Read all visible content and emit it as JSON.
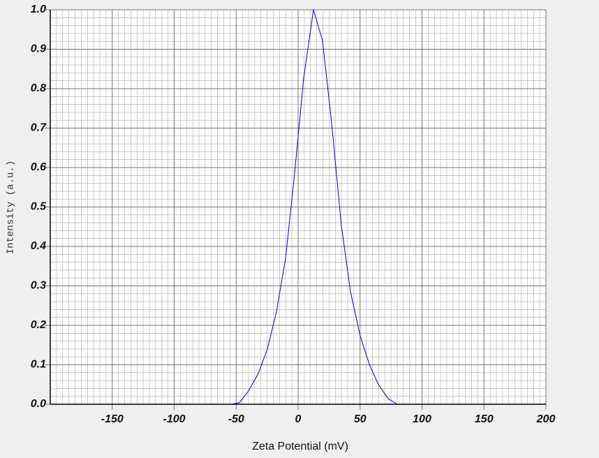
{
  "chart_data": {
    "type": "line",
    "x_label": "Zeta Potential (mV)",
    "y_label": "Intensity (a.u.)",
    "xlim": [
      -200,
      200
    ],
    "ylim": [
      0,
      1
    ],
    "xticks": [
      -150,
      -100,
      -50,
      0,
      50,
      100,
      150,
      200
    ],
    "yticks": [
      {
        "value": 0,
        "label": "0.0"
      },
      0.1,
      0.2,
      0.3,
      0.4,
      0.5,
      0.6,
      0.7,
      0.8,
      0.9,
      {
        "value": 1,
        "label": "1.0"
      }
    ],
    "grid": true,
    "series": [
      {
        "color": "#0000cc",
        "x": [
          -54,
          -47.3,
          -40,
          -32.1,
          -24.8,
          -17.5,
          -10.1,
          -2.8,
          4.5,
          12.4,
          19.7,
          27,
          34.9,
          42.3,
          50.1,
          57.5,
          64.8,
          72.7,
          80
        ],
        "values": [
          0,
          0.004,
          0.034,
          0.078,
          0.14,
          0.234,
          0.37,
          0.586,
          0.827,
          1,
          0.922,
          0.715,
          0.453,
          0.285,
          0.173,
          0.101,
          0.05,
          0.014,
          0
        ]
      }
    ]
  }
}
